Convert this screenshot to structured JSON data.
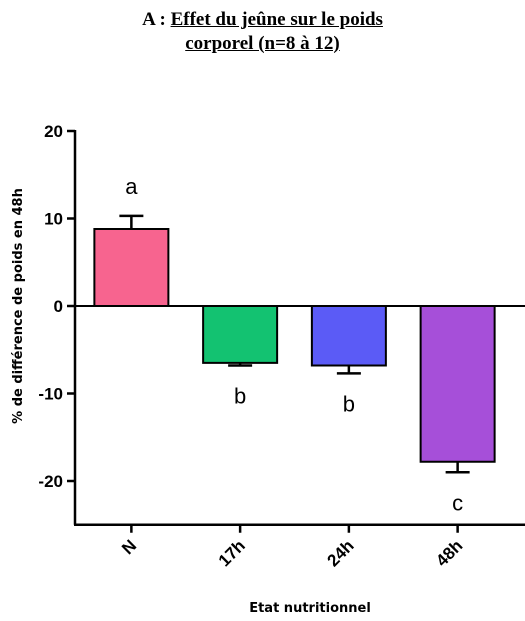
{
  "title": {
    "prefix": "A : ",
    "line1": "Effet du jeûne sur le poids",
    "line2": "corporel (n=8 à 12)"
  },
  "chart_data": {
    "type": "bar",
    "title": "A : Effet du jeûne sur le poids corporel (n=8 à 12)",
    "xlabel": "Etat nutritionnel",
    "ylabel": "% de différence de poids en 48h",
    "ylim": [
      -25,
      20
    ],
    "yticks": [
      20,
      10,
      0,
      -10,
      -20
    ],
    "categories": [
      "N",
      "17h",
      "24h",
      "48h"
    ],
    "values": [
      8.8,
      -6.5,
      -6.8,
      -17.8
    ],
    "errors": [
      1.5,
      0.3,
      0.9,
      1.2
    ],
    "significance": [
      "a",
      "b",
      "b",
      "c"
    ],
    "colors": [
      "#f7648f",
      "#13c271",
      "#5b5bf6",
      "#a64fd9"
    ],
    "grid": false,
    "legend": "none"
  }
}
